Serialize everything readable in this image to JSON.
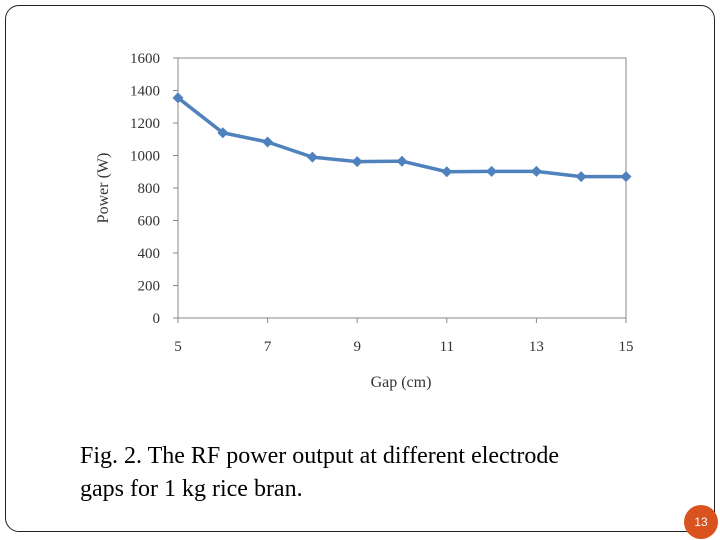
{
  "slide": {
    "caption_line1": "Fig. 2. The RF power output at different electrode",
    "caption_line2": "gaps for 1 kg rice bran.",
    "page_number": "13",
    "badge_color": "#d9531e"
  },
  "chart_data": {
    "type": "line",
    "title": "",
    "xlabel": "Gap (cm)",
    "ylabel": "Power (W)",
    "xlim": [
      5,
      15
    ],
    "ylim": [
      0,
      1600
    ],
    "xticks": [
      5,
      7,
      9,
      11,
      13,
      15
    ],
    "yticks": [
      0,
      200,
      400,
      600,
      800,
      1000,
      1200,
      1400,
      1600
    ],
    "grid": false,
    "legend": "none",
    "series": [
      {
        "color": "#4f81bd",
        "marker": "diamond",
        "x": [
          5,
          6,
          7,
          8,
          9,
          10,
          11,
          12,
          13,
          14,
          15
        ],
        "y": [
          1355,
          1140,
          1083,
          990,
          962,
          965,
          900,
          902,
          902,
          870,
          870
        ]
      }
    ]
  }
}
